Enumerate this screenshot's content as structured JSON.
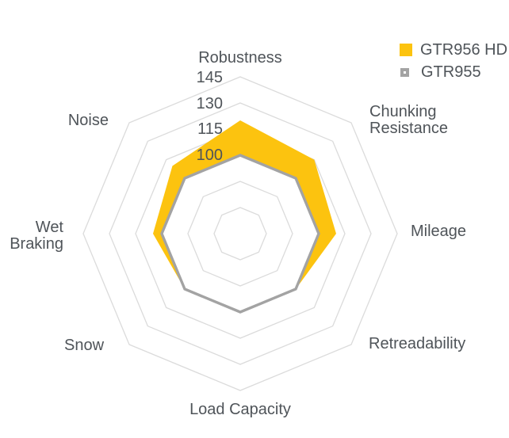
{
  "chart": {
    "background": "#FFFFFF",
    "grid_color": "#DBDBDB",
    "text_color": "#4F5459"
  },
  "chart_data": {
    "type": "radar",
    "grid": true,
    "grid_shape": "octagon",
    "legend_position": "top-right",
    "categories": [
      "Robustness",
      "Chunking Resistance",
      "Mileage",
      "Retreadability",
      "Load Capacity",
      "Snow",
      "Wet Braking",
      "Noise"
    ],
    "categories_display": [
      "Robustness",
      "Chunking\nResistance",
      "Mileage",
      "Retreadability",
      "Load Capacity",
      "Snow",
      "Wet\nBraking",
      "Noise"
    ],
    "series": [
      {
        "name": "GTR956 HD",
        "values": [
          120,
          115,
          110,
          100,
          100,
          100,
          105,
          110
        ],
        "color": "#FCC30F",
        "style": "filled-band"
      },
      {
        "name": "GTR955",
        "values": [
          100,
          100,
          100,
          100,
          100,
          100,
          100,
          100
        ],
        "color": "#A3A3A3",
        "style": "line"
      }
    ],
    "radial_axis": {
      "min": 55,
      "max": 145,
      "step": 15,
      "labeled_ticks": [
        "145",
        "130",
        "115",
        "100"
      ]
    }
  }
}
